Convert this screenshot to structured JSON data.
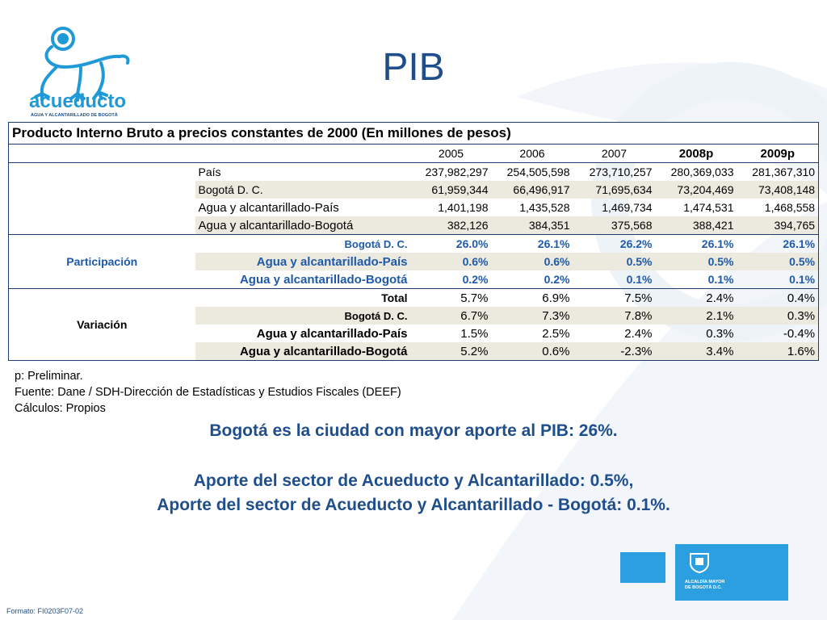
{
  "logo": {
    "brand": "acueducto",
    "subtitle": "AGUA Y ALCANTARILLADO DE BOGOTÁ"
  },
  "title": "PIB",
  "table": {
    "title": "Producto Interno Bruto a precios constantes de 2000 (En millones de pesos)",
    "years": [
      "2005",
      "2006",
      "2007",
      "2008p",
      "2009p"
    ],
    "base": [
      {
        "label": "País",
        "values": [
          "237,982,297",
          "254,505,598",
          "273,710,257",
          "280,369,033",
          "281,367,310"
        ]
      },
      {
        "label": "Bogotá D. C.",
        "values": [
          "61,959,344",
          "66,496,917",
          "71,695,634",
          "73,204,469",
          "73,408,148"
        ]
      },
      {
        "label": "Agua y alcantarillado-País",
        "values": [
          "1,401,198",
          "1,435,528",
          "1,469,734",
          "1,474,531",
          "1,468,558"
        ]
      },
      {
        "label": "Agua y alcantarillado-Bogotá",
        "values": [
          "382,126",
          "384,351",
          "375,568",
          "388,421",
          "394,765"
        ]
      }
    ],
    "participacion": {
      "label": "Participación",
      "rows": [
        {
          "label": "Bogotá D. C.",
          "values": [
            "26.0%",
            "26.1%",
            "26.2%",
            "26.1%",
            "26.1%"
          ]
        },
        {
          "label": "Agua y alcantarillado-País",
          "values": [
            "0.6%",
            "0.6%",
            "0.5%",
            "0.5%",
            "0.5%"
          ]
        },
        {
          "label": "Agua y alcantarillado-Bogotá",
          "values": [
            "0.2%",
            "0.2%",
            "0.1%",
            "0.1%",
            "0.1%"
          ]
        }
      ]
    },
    "variacion": {
      "label": "Variación",
      "rows": [
        {
          "label": "Total",
          "values": [
            "5.7%",
            "6.9%",
            "7.5%",
            "2.4%",
            "0.4%"
          ]
        },
        {
          "label": "Bogotá D. C.",
          "values": [
            "6.7%",
            "7.3%",
            "7.8%",
            "2.1%",
            "0.3%"
          ]
        },
        {
          "label": "Agua y alcantarillado-País",
          "values": [
            "1.5%",
            "2.5%",
            "2.4%",
            "0.3%",
            "-0.4%"
          ]
        },
        {
          "label": "Agua y alcantarillado-Bogotá",
          "values": [
            "5.2%",
            "0.6%",
            "-2.3%",
            "3.4%",
            "1.6%"
          ]
        }
      ]
    }
  },
  "notes": [
    "p: Preliminar.",
    "Fuente: Dane  / SDH-Dirección de Estadísticas y Estudios Fiscales (DEEF)",
    "Cálculos: Propios"
  ],
  "messages": [
    "Bogotá es la ciudad con mayor aporte al PIB: 26%.",
    "Aporte del sector de Acueducto y  Alcantarillado: 0.5%,",
    "Aporte  del sector de Acueducto y Alcantarillado - Bogotá: 0.1%."
  ],
  "footer": "Formato: FI0203F07-02",
  "badge": {
    "line1": "ALCALDÍA MAYOR",
    "line2": "DE BOGOTÁ D.C."
  },
  "colors": {
    "title_blue": "#1f4e8c",
    "logo_blue": "#1f9ad6",
    "badge_blue": "#2b9fe0",
    "row_shade": "#ece9df"
  }
}
